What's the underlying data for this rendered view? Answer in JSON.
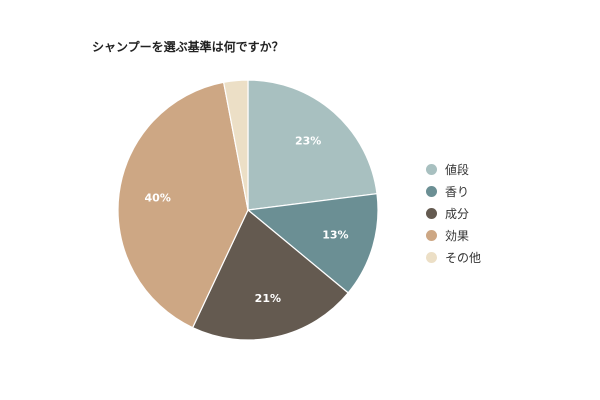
{
  "chart_data": {
    "type": "pie",
    "title": "シャンプーを選ぶ基準は何ですか？",
    "categories": [
      "値段",
      "香り",
      "成分",
      "効果",
      "その他"
    ],
    "values": [
      23,
      13,
      21,
      40,
      3
    ],
    "labels": [
      "23%",
      "13%",
      "21%",
      "40%",
      ""
    ],
    "colors": [
      "#a8c0c0",
      "#6b8f94",
      "#645a50",
      "#cda784",
      "#ecdfc6"
    ],
    "legend_position": "right"
  }
}
